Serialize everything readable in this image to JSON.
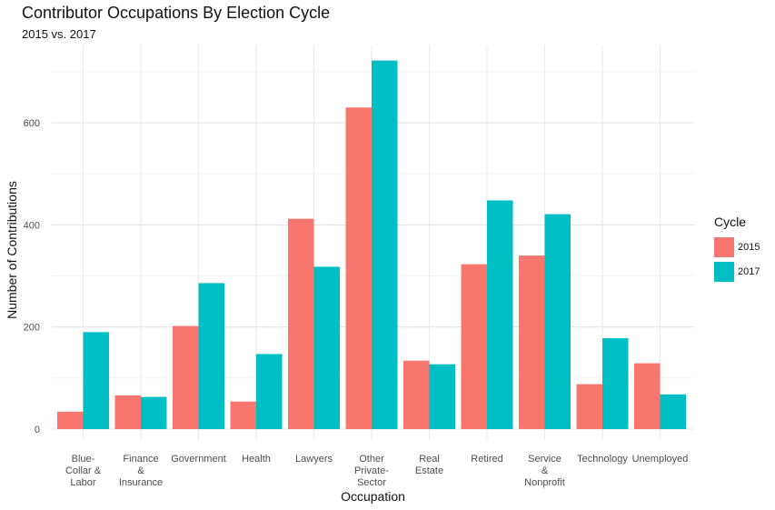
{
  "chart_data": {
    "type": "bar",
    "title": "Contributor Occupations By Election Cycle",
    "subtitle": "2015 vs. 2017",
    "xlabel": "Occupation",
    "ylabel": "Number of Contributions",
    "categories": [
      [
        "Blue-",
        "Collar &",
        "Labor"
      ],
      [
        "Finance",
        "&",
        "Insurance"
      ],
      [
        "Government"
      ],
      [
        "Health"
      ],
      [
        "Lawyers"
      ],
      [
        "Other",
        "Private-",
        "Sector"
      ],
      [
        "Real",
        "Estate"
      ],
      [
        "Retired"
      ],
      [
        "Service",
        "&",
        "Nonprofit"
      ],
      [
        "Technology"
      ],
      [
        "Unemployed"
      ]
    ],
    "series": [
      {
        "name": "2015",
        "color": "#F8766D",
        "values": [
          34,
          66,
          202,
          54,
          412,
          630,
          134,
          323,
          340,
          88,
          129
        ]
      },
      {
        "name": "2017",
        "color": "#00BFC4",
        "values": [
          190,
          63,
          286,
          147,
          318,
          722,
          127,
          448,
          421,
          178,
          68
        ]
      }
    ],
    "ylim": [
      0,
      760
    ],
    "yticks": [
      0,
      200,
      400,
      600
    ],
    "grid": true,
    "legend": {
      "title": "Cycle",
      "position": "right"
    }
  }
}
